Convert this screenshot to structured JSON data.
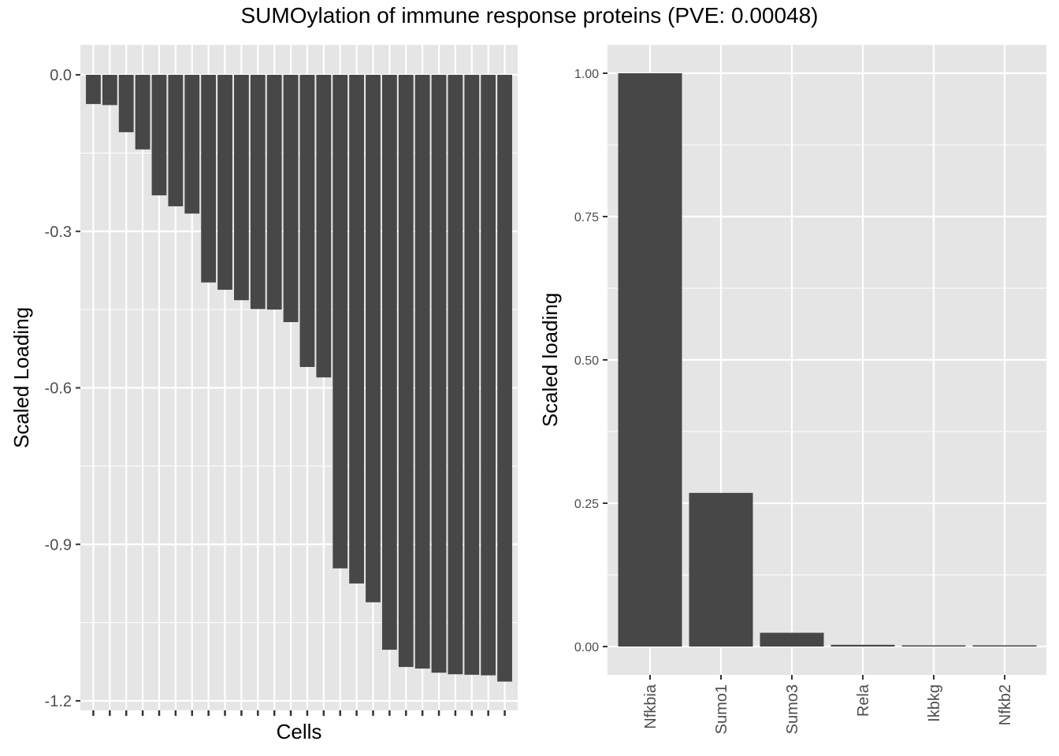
{
  "title": "SUMOylation of immune response proteins (PVE: 0.00048)",
  "colors": {
    "panel": "#e5e5e5",
    "grid": "#ffffff",
    "bar": "#474747",
    "tick": "#333333"
  },
  "chart_data": [
    {
      "type": "bar",
      "xlabel": "Cells",
      "ylabel": "Scaled Loading",
      "ylim": [
        -1.2,
        0.0
      ],
      "yticks": [
        0.0,
        -0.3,
        -0.6,
        -0.9,
        -1.2
      ],
      "ytick_labels": [
        "0.0",
        "-0.3",
        "-0.6",
        "-0.9",
        "-1.2"
      ],
      "grid": true,
      "x_tick_labels_shown": false,
      "values": [
        -0.056,
        -0.058,
        -0.11,
        -0.143,
        -0.231,
        -0.252,
        -0.266,
        -0.398,
        -0.412,
        -0.432,
        -0.449,
        -0.45,
        -0.474,
        -0.56,
        -0.58,
        -0.946,
        -0.975,
        -1.011,
        -1.102,
        -1.135,
        -1.138,
        -1.146,
        -1.149,
        -1.15,
        -1.151,
        -1.163
      ]
    },
    {
      "type": "bar",
      "xlabel": "",
      "ylabel": "Scaled loading",
      "ylim": [
        0.0,
        1.0
      ],
      "yticks": [
        0.0,
        0.25,
        0.5,
        0.75,
        1.0
      ],
      "ytick_labels": [
        "0.00",
        "0.25",
        "0.50",
        "0.75",
        "1.00"
      ],
      "grid": true,
      "categories": [
        "Nfkbia",
        "Sumo1",
        "Sumo3",
        "Rela",
        "Ikbkg",
        "Nfkb2"
      ],
      "values": [
        1.0,
        0.268,
        0.024,
        0.003,
        0.002,
        0.001
      ]
    }
  ]
}
